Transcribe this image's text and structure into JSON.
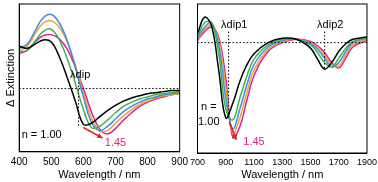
{
  "chart_data": [
    {
      "type": "line",
      "x_label": "Wavelength / nm",
      "y_label": "Δ Extinction",
      "tick_labels": "x",
      "grid": false,
      "baseline": 0,
      "x": [
        400,
        425,
        450,
        475,
        500,
        525,
        550,
        575,
        600,
        625,
        650,
        675,
        700,
        725,
        750,
        775,
        800,
        825,
        850,
        875,
        900
      ],
      "xlim": [
        400,
        900
      ],
      "xticks": [
        400,
        500,
        600,
        700,
        800,
        900
      ],
      "ylim": [
        -0.6,
        0.8
      ],
      "series": [
        {
          "color": "#000000",
          "values": [
            0.4,
            0.38,
            0.42,
            0.46,
            0.44,
            0.3,
            0.1,
            -0.12,
            -0.34,
            -0.33,
            -0.27,
            -0.21,
            -0.16,
            -0.12,
            -0.09,
            -0.07,
            -0.05,
            -0.04,
            -0.03,
            -0.02,
            -0.02
          ]
        },
        {
          "color": "#3cb44b",
          "values": [
            0.35,
            0.36,
            0.45,
            0.54,
            0.56,
            0.46,
            0.28,
            0.05,
            -0.2,
            -0.37,
            -0.36,
            -0.3,
            -0.23,
            -0.17,
            -0.13,
            -0.1,
            -0.08,
            -0.06,
            -0.05,
            -0.04,
            -0.03
          ]
        },
        {
          "color": "#3a8ee6",
          "values": [
            0.38,
            0.42,
            0.55,
            0.67,
            0.7,
            0.62,
            0.45,
            0.2,
            -0.08,
            -0.32,
            -0.4,
            -0.36,
            -0.29,
            -0.22,
            -0.17,
            -0.13,
            -0.1,
            -0.08,
            -0.06,
            -0.05,
            -0.04
          ]
        },
        {
          "color": "#f0a030",
          "values": [
            0.36,
            0.4,
            0.52,
            0.62,
            0.64,
            0.58,
            0.44,
            0.22,
            -0.04,
            -0.28,
            -0.4,
            -0.4,
            -0.33,
            -0.26,
            -0.2,
            -0.15,
            -0.12,
            -0.09,
            -0.07,
            -0.06,
            -0.05
          ]
        },
        {
          "color": "#e0208f",
          "values": [
            0.33,
            0.36,
            0.44,
            0.5,
            0.51,
            0.47,
            0.37,
            0.2,
            0.0,
            -0.22,
            -0.38,
            -0.43,
            -0.38,
            -0.3,
            -0.23,
            -0.17,
            -0.13,
            -0.1,
            -0.08,
            -0.06,
            -0.05
          ]
        }
      ],
      "annotations": [
        {
          "text": "λdip",
          "x": 590,
          "y": 0.13,
          "color": "#000000"
        },
        {
          "text": "n = 1.00",
          "x": 470,
          "y": -0.44,
          "color": "#000000"
        },
        {
          "text": "1.45",
          "x": 700,
          "y": -0.52,
          "color": "#e0208f"
        }
      ],
      "dip_lines": [
        {
          "x": 585,
          "from": 0.06,
          "to": -0.36
        }
      ],
      "arrows": [
        {
          "from": [
            600,
            -0.37
          ],
          "to": [
            660,
            -0.47
          ]
        }
      ]
    },
    {
      "type": "line",
      "x_label": "Wavelength / nm",
      "tick_labels": "x",
      "grid": false,
      "baseline": 0,
      "x": [
        700,
        750,
        800,
        850,
        900,
        950,
        1000,
        1050,
        1100,
        1200,
        1300,
        1400,
        1500,
        1550,
        1600,
        1650,
        1700,
        1750,
        1800,
        1900
      ],
      "xlim": [
        700,
        1900
      ],
      "xticks": [
        700,
        900,
        1100,
        1300,
        1500,
        1700,
        1900
      ],
      "ylim": [
        -1.0,
        0.35
      ],
      "series": [
        {
          "color": "#000000",
          "values": [
            0.08,
            0.23,
            0.15,
            -0.25,
            -0.68,
            -0.55,
            -0.35,
            -0.2,
            -0.1,
            0.0,
            0.04,
            0.03,
            -0.05,
            -0.15,
            -0.24,
            -0.18,
            -0.08,
            -0.01,
            0.03,
            0.05
          ]
        },
        {
          "color": "#3cb44b",
          "values": [
            0.05,
            0.18,
            0.18,
            -0.1,
            -0.6,
            -0.7,
            -0.5,
            -0.3,
            -0.15,
            -0.02,
            0.03,
            0.03,
            -0.02,
            -0.09,
            -0.18,
            -0.22,
            -0.14,
            -0.05,
            0.01,
            0.04
          ]
        },
        {
          "color": "#3a8ee6",
          "values": [
            0.04,
            0.14,
            0.18,
            -0.02,
            -0.5,
            -0.78,
            -0.6,
            -0.38,
            -0.2,
            -0.04,
            0.02,
            0.03,
            -0.01,
            -0.06,
            -0.14,
            -0.22,
            -0.18,
            -0.08,
            0.0,
            0.04
          ]
        },
        {
          "color": "#f0a030",
          "values": [
            0.03,
            0.12,
            0.16,
            0.03,
            -0.4,
            -0.82,
            -0.68,
            -0.45,
            -0.25,
            -0.06,
            0.01,
            0.03,
            0.0,
            -0.04,
            -0.11,
            -0.2,
            -0.21,
            -0.11,
            -0.02,
            0.03
          ]
        },
        {
          "color": "#e0208f",
          "values": [
            0.02,
            0.1,
            0.14,
            0.05,
            -0.32,
            -0.86,
            -0.76,
            -0.52,
            -0.3,
            -0.08,
            0.0,
            0.03,
            0.01,
            -0.03,
            -0.09,
            -0.18,
            -0.23,
            -0.14,
            -0.04,
            0.02
          ]
        }
      ],
      "annotations": [
        {
          "text": "λdip1",
          "x": 960,
          "y": 0.16,
          "color": "#000000"
        },
        {
          "text": "λdip2",
          "x": 1640,
          "y": 0.16,
          "color": "#000000"
        },
        {
          "text": "n =",
          "x": 780,
          "y": -0.58,
          "color": "#000000"
        },
        {
          "text": "1.00",
          "x": 780,
          "y": -0.72,
          "color": "#000000"
        },
        {
          "text": "1.45",
          "x": 1100,
          "y": -0.9,
          "color": "#e0208f"
        }
      ],
      "dip_lines": [
        {
          "x": 920,
          "from": 0.1,
          "to": -0.68
        },
        {
          "x": 1600,
          "from": 0.1,
          "to": -0.24
        }
      ],
      "arrows": [
        {
          "from": [
            925,
            -0.72
          ],
          "to": [
            975,
            -0.88
          ]
        }
      ]
    }
  ]
}
